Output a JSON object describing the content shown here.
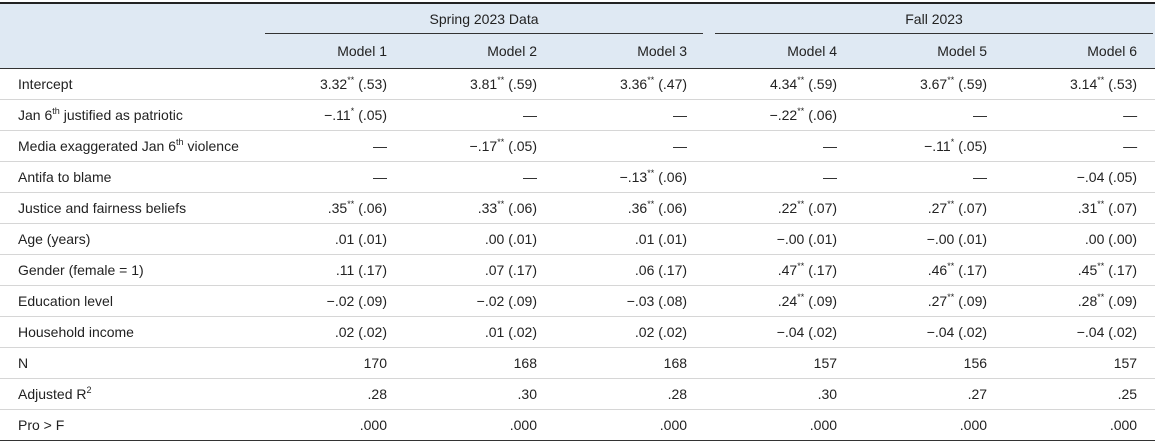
{
  "table": {
    "groups": [
      "Spring 2023 Data",
      "Fall 2023"
    ],
    "columns": [
      "Model 1",
      "Model 2",
      "Model 3",
      "Model 4",
      "Model 5",
      "Model 6"
    ],
    "rows": [
      {
        "label": {
          "text": "Intercept"
        },
        "cells": [
          {
            "est": "3.32",
            "sig": "**",
            "se": "(.53)"
          },
          {
            "est": "3.81",
            "sig": "**",
            "se": "(.59)"
          },
          {
            "est": "3.36",
            "sig": "**",
            "se": "(.47)"
          },
          {
            "est": "4.34",
            "sig": "**",
            "se": "(.59)"
          },
          {
            "est": "3.67",
            "sig": "**",
            "se": "(.59)"
          },
          {
            "est": "3.14",
            "sig": "**",
            "se": "(.53)"
          }
        ]
      },
      {
        "label": {
          "text": "Jan 6",
          "sup": "th",
          "after": "justified as patriotic"
        },
        "cells": [
          {
            "est": "−.11",
            "sig": "*",
            "se": "(.05)"
          },
          "—",
          "—",
          {
            "est": "−.22",
            "sig": "**",
            "se": "(.06)"
          },
          "—",
          "—"
        ]
      },
      {
        "label": {
          "text": "Media exaggerated Jan 6",
          "sup": "th",
          "after": "violence"
        },
        "cells": [
          "—",
          {
            "est": "−.17",
            "sig": "**",
            "se": "(.05)"
          },
          "—",
          "—",
          {
            "est": "−.11",
            "sig": "*",
            "se": "(.05)"
          },
          "—"
        ]
      },
      {
        "label": {
          "text": "Antifa to blame"
        },
        "cells": [
          "—",
          "—",
          {
            "est": "−.13",
            "sig": "**",
            "se": "(.06)"
          },
          "—",
          "—",
          "−.04 (.05)"
        ]
      },
      {
        "label": {
          "text": "Justice and fairness beliefs"
        },
        "cells": [
          {
            "est": ".35",
            "sig": "**",
            "se": "(.06)"
          },
          {
            "est": ".33",
            "sig": "**",
            "se": "(.06)"
          },
          {
            "est": ".36",
            "sig": "**",
            "se": "(.06)"
          },
          {
            "est": ".22",
            "sig": "**",
            "se": "(.07)"
          },
          {
            "est": ".27",
            "sig": "**",
            "se": "(.07)"
          },
          {
            "est": ".31",
            "sig": "**",
            "se": "(.07)"
          }
        ]
      },
      {
        "label": {
          "text": "Age (years)"
        },
        "cells": [
          ".01 (.01)",
          ".00 (.01)",
          ".01 (.01)",
          "−.00 (.01)",
          "−.00 (.01)",
          ".00 (.00)"
        ]
      },
      {
        "label": {
          "text": "Gender (female = 1)"
        },
        "cells": [
          ".11 (.17)",
          ".07 (.17)",
          ".06 (.17)",
          {
            "est": ".47",
            "sig": "**",
            "se": "(.17)"
          },
          {
            "est": ".46",
            "sig": "**",
            "se": "(.17)"
          },
          {
            "est": ".45",
            "sig": "**",
            "se": "(.17)"
          }
        ]
      },
      {
        "label": {
          "text": "Education level"
        },
        "cells": [
          "−.02 (.09)",
          "−.02 (.09)",
          "−.03 (.08)",
          {
            "est": ".24",
            "sig": "**",
            "se": "(.09)"
          },
          {
            "est": ".27",
            "sig": "**",
            "se": "(.09)"
          },
          {
            "est": ".28",
            "sig": "**",
            "se": "(.09)"
          }
        ]
      },
      {
        "label": {
          "text": "Household income"
        },
        "cells": [
          ".02 (.02)",
          ".01 (.02)",
          ".02 (.02)",
          "−.04 (.02)",
          "−.04 (.02)",
          "−.04 (.02)"
        ]
      },
      {
        "label": {
          "text": "N"
        },
        "cells": [
          "170",
          "168",
          "168",
          "157",
          "156",
          "157"
        ]
      },
      {
        "label": {
          "text": "Adjusted R",
          "sup": "2"
        },
        "cells": [
          ".28",
          ".30",
          ".28",
          ".30",
          ".27",
          ".25"
        ]
      },
      {
        "label": {
          "text": "Pro > F"
        },
        "cells": [
          ".000",
          ".000",
          ".000",
          ".000",
          ".000",
          ".000"
        ]
      }
    ]
  }
}
